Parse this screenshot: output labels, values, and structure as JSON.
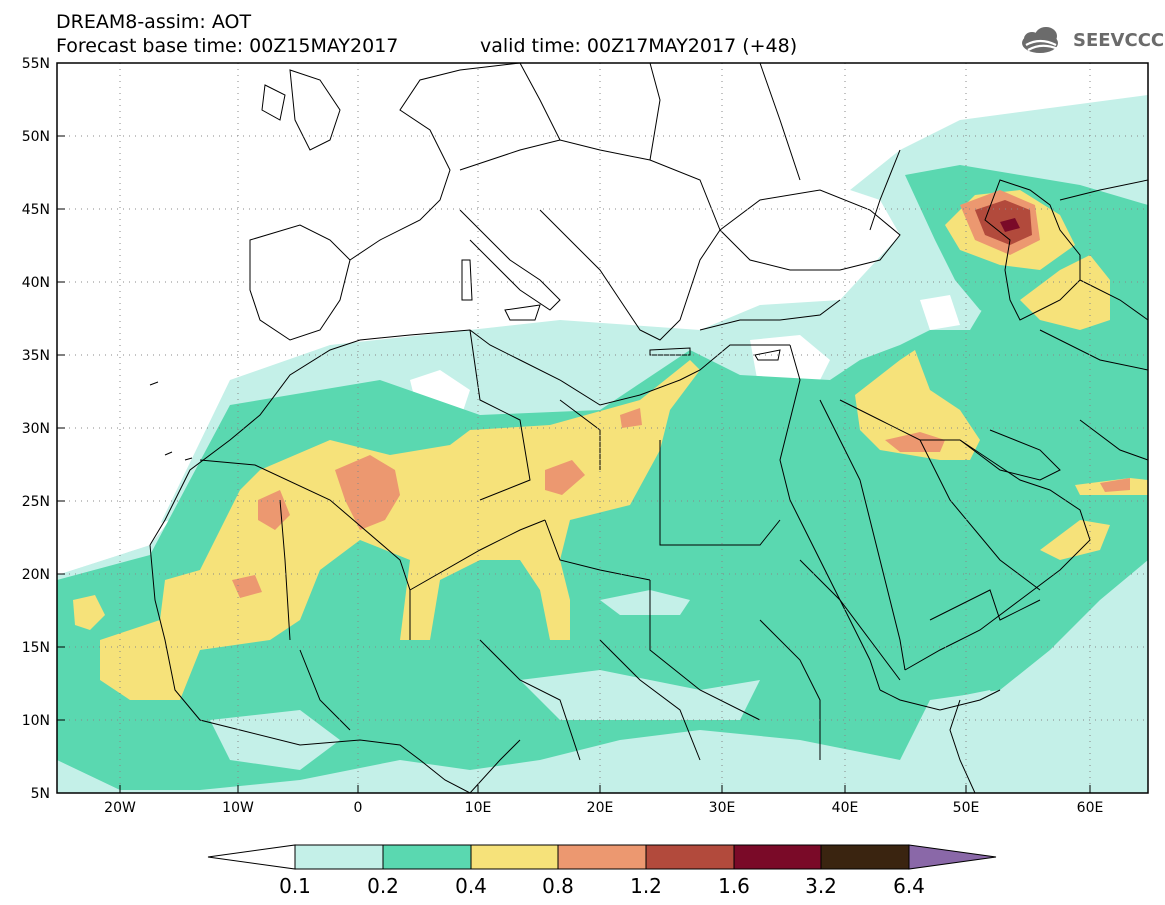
{
  "header": {
    "title": "DREAM8-assim: AOT",
    "base_time": "Forecast base time: 00Z15MAY2017",
    "valid_time": "valid time: 00Z17MAY2017 (+48)",
    "logo_text": "SEEVCCC"
  },
  "map": {
    "lat_labels": [
      "55N",
      "50N",
      "45N",
      "40N",
      "35N",
      "30N",
      "25N",
      "20N",
      "15N",
      "10N",
      "5N"
    ],
    "lon_labels": [
      "20W",
      "10W",
      "0",
      "10E",
      "20E",
      "30E",
      "40E",
      "50E",
      "60E"
    ],
    "lon_range": [
      -25,
      65
    ],
    "lat_range": [
      5,
      55
    ]
  },
  "colorbar": {
    "labels": [
      "0.1",
      "0.2",
      "0.4",
      "0.8",
      "1.2",
      "1.6",
      "3.2",
      "6.4"
    ],
    "colors": [
      "#c4f0e8",
      "#5ad8b0",
      "#f6e27a",
      "#ec9870",
      "#b24a3c",
      "#7a0a28",
      "#3a2410",
      "#8a68a8"
    ],
    "low_color": "#ffffff"
  },
  "colors": {
    "aot_0_1": "#c4f0e8",
    "aot_0_2": "#5ad8b0",
    "aot_0_4": "#f6e27a",
    "aot_0_8": "#ec9870",
    "aot_1_2": "#b24a3c",
    "aot_1_6": "#7a0a28"
  }
}
